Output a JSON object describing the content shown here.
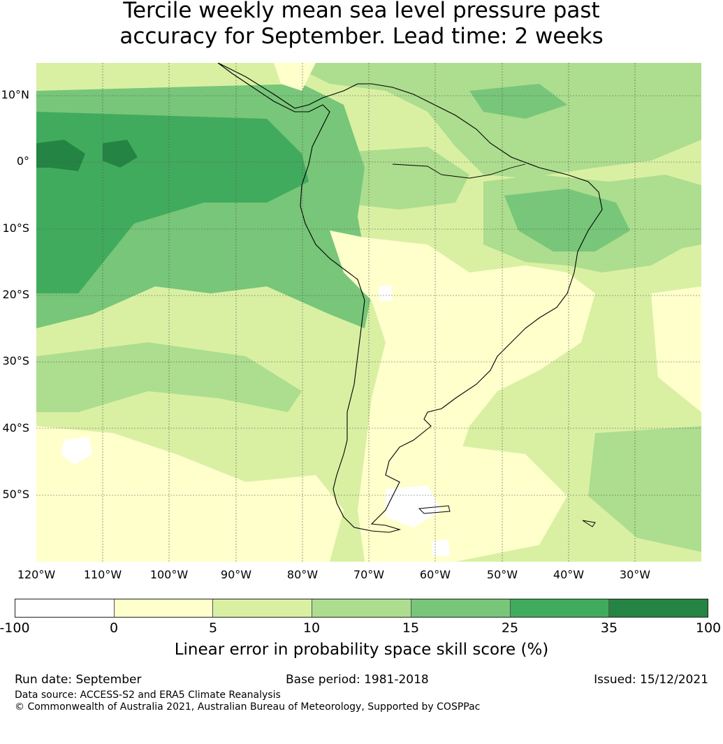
{
  "title": {
    "line1": "Tercile weekly mean sea level pressure past",
    "line2": "accuracy for September. Lead time: 2 weeks"
  },
  "map": {
    "lat_labels": [
      "10°N",
      "0°",
      "10°S",
      "20°S",
      "30°S",
      "40°S",
      "50°S"
    ],
    "lon_labels": [
      "120°W",
      "110°W",
      "100°W",
      "90°W",
      "80°W",
      "70°W",
      "60°W",
      "50°W",
      "40°W",
      "30°W"
    ],
    "gridlines": true
  },
  "colorbar": {
    "ticks": [
      "-100",
      "0",
      "5",
      "10",
      "15",
      "25",
      "35",
      "100"
    ],
    "colors": [
      "#ffffff",
      "#ffffcc",
      "#d9f0a3",
      "#addd8e",
      "#78c679",
      "#41ab5d",
      "#238443"
    ],
    "label": "Linear error in probability space skill score (%)"
  },
  "footer": {
    "run_date": "Run date: September",
    "base_period": "Base period: 1981-2018",
    "issued": "Issued: 15/12/2021",
    "data_source": "Data source: ACCESS-S2 and ERA5 Climate Reanalysis",
    "copyright": "© Commonwealth of Australia 2021, Australian Bureau of Meteorology, Supported by COSPPac"
  }
}
